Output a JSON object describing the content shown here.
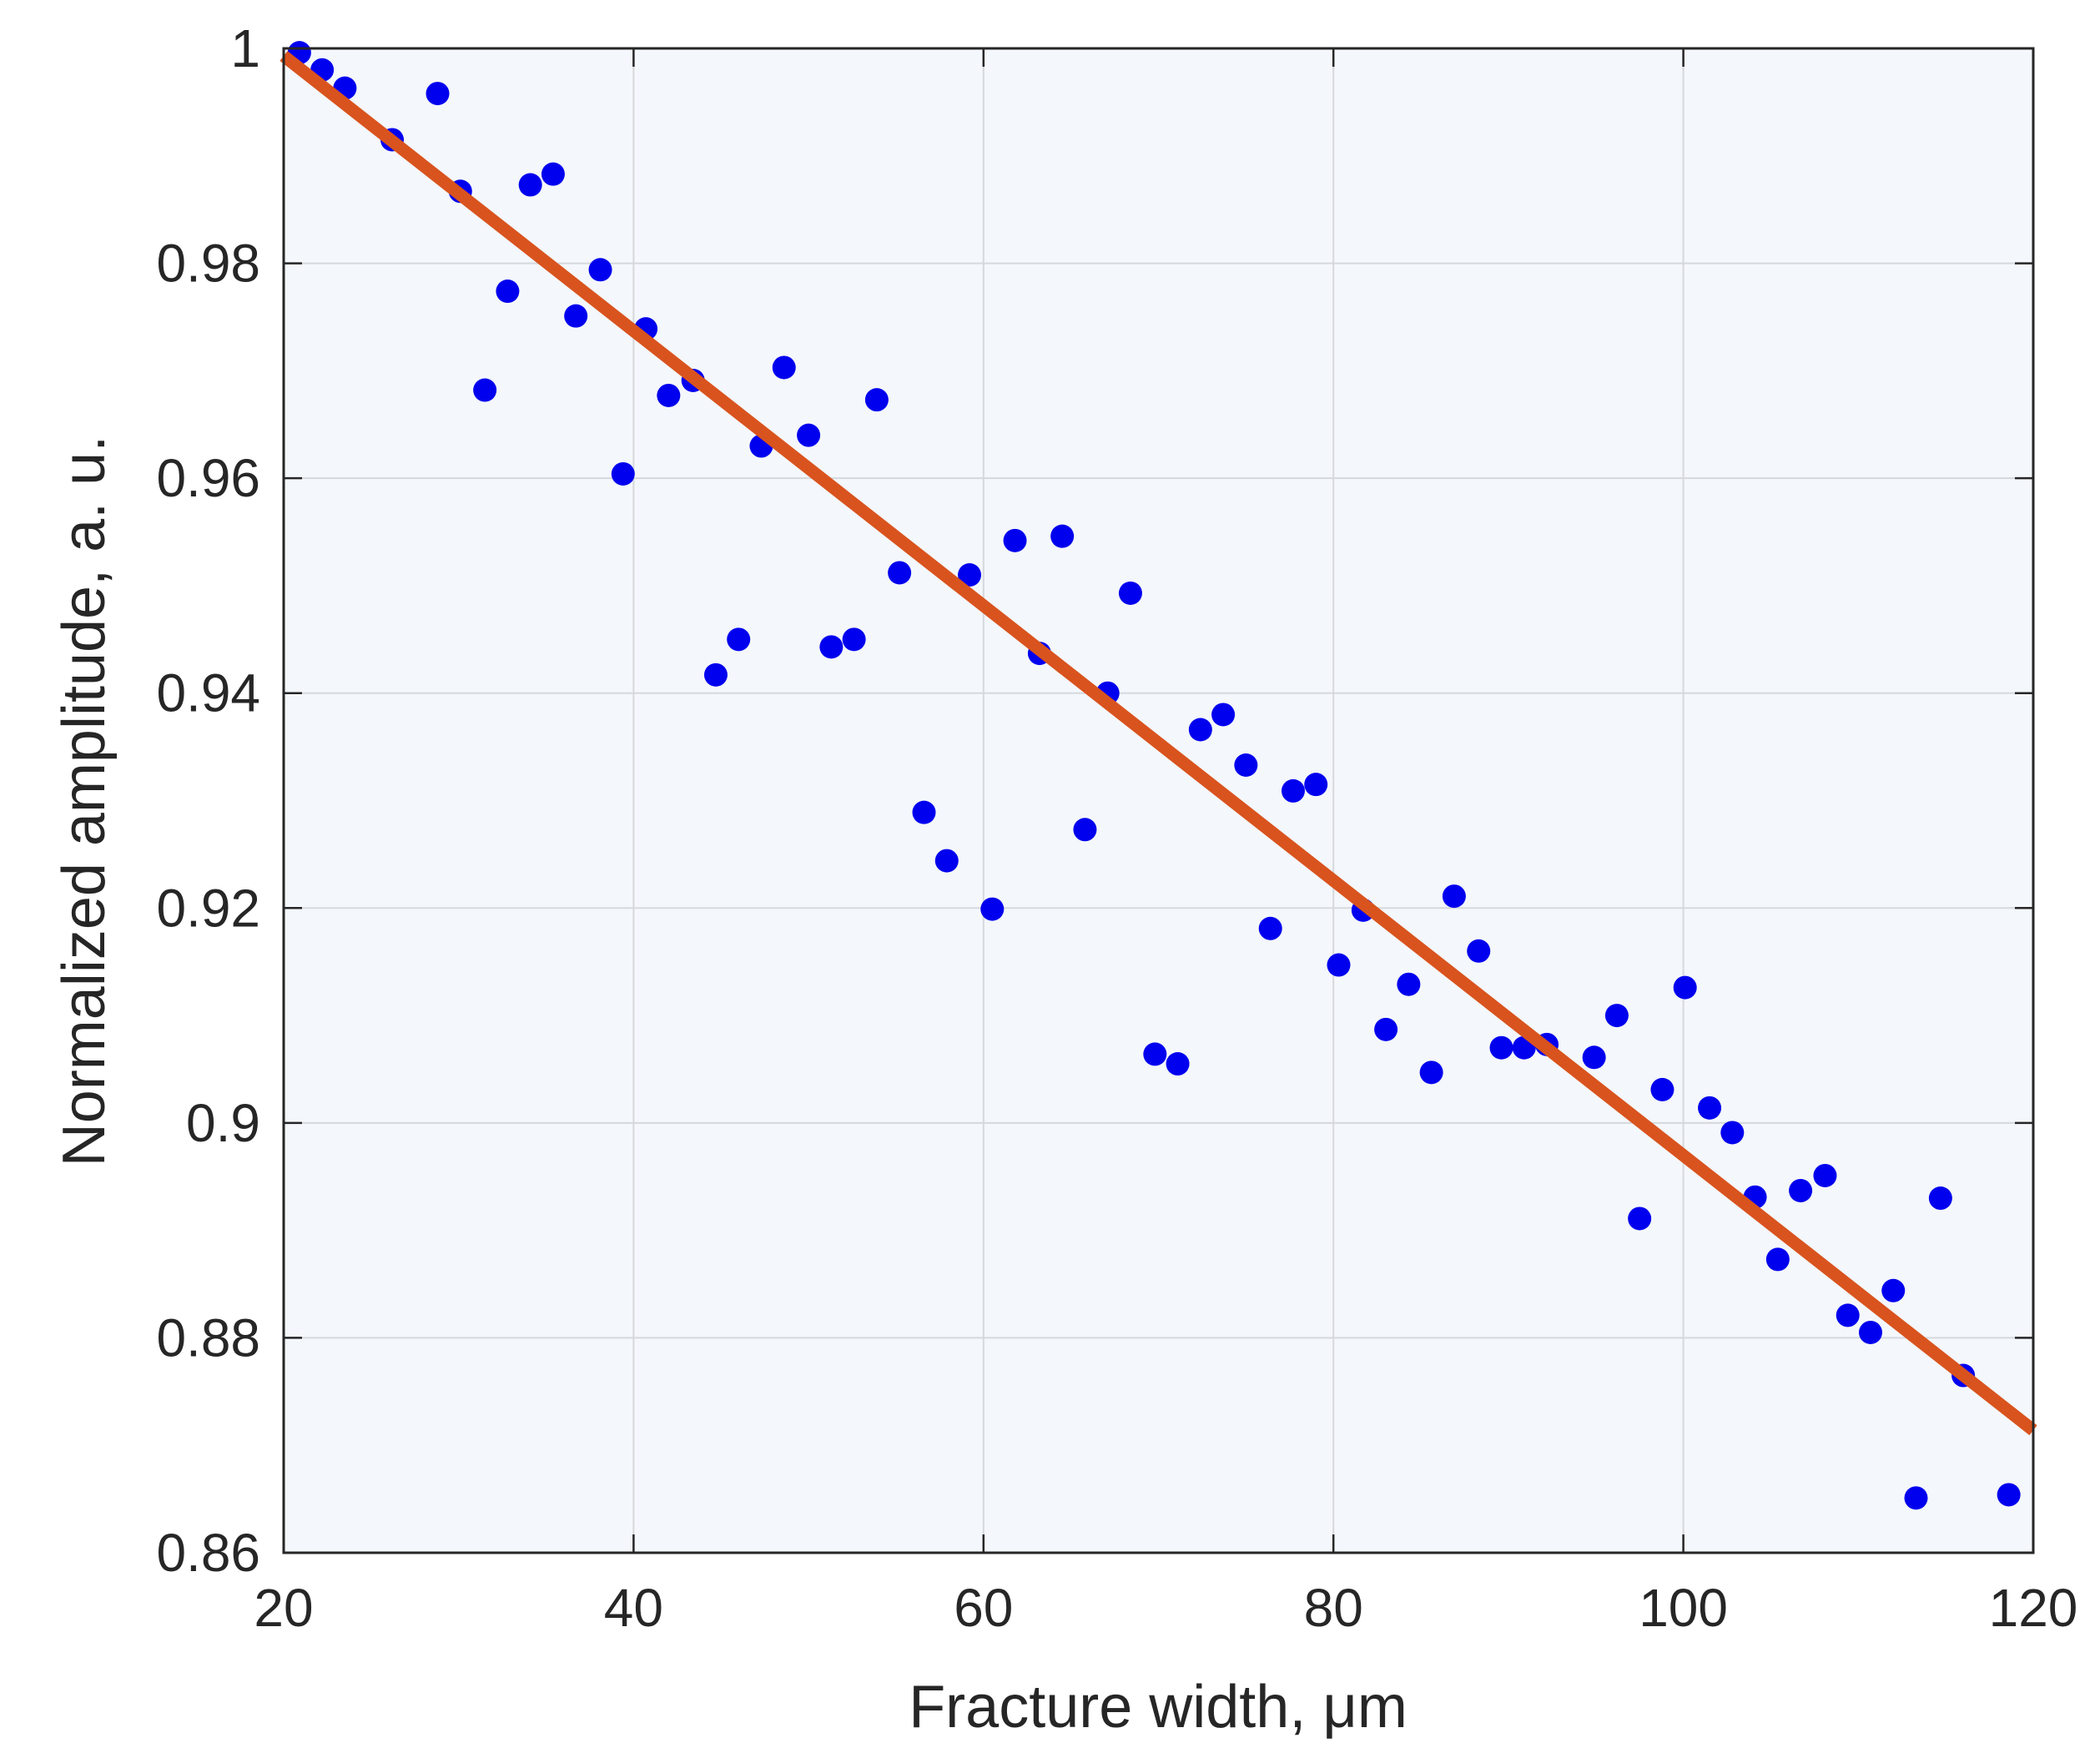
{
  "chart_data": {
    "type": "scatter",
    "xlabel": "Fracture width, μm",
    "ylabel": "Normalized amplitude, a. u.",
    "xlim": [
      20,
      120
    ],
    "ylim": [
      0.86,
      1.0
    ],
    "x_ticks": [
      20,
      40,
      60,
      80,
      100,
      120
    ],
    "x_tick_labels": [
      "20",
      "40",
      "60",
      "80",
      "100",
      "120"
    ],
    "y_ticks": [
      0.86,
      0.88,
      0.9,
      0.92,
      0.94,
      0.96,
      0.98,
      1.0
    ],
    "y_tick_labels": [
      "0.86",
      "0.88",
      "0.9",
      "0.92",
      "0.94",
      "0.96",
      "0.98",
      "1"
    ],
    "grid": true,
    "colors": {
      "points": "#0000ee",
      "fit_line": "#d9531e",
      "plot_background": "#f4f7fb",
      "axes": "#262626"
    },
    "series": [
      {
        "type": "scatter",
        "x": [
          20.9,
          22.2,
          23.5,
          26.2,
          28.8,
          30.1,
          31.5,
          32.8,
          34.1,
          35.4,
          36.7,
          38.1,
          39.4,
          40.7,
          42.0,
          43.4,
          44.7,
          46.0,
          47.3,
          48.6,
          50.0,
          51.3,
          52.6,
          53.9,
          55.2,
          56.6,
          57.9,
          59.2,
          60.5,
          61.8,
          63.2,
          64.5,
          65.8,
          67.1,
          68.4,
          69.8,
          71.1,
          72.4,
          73.7,
          75.0,
          76.4,
          77.7,
          79.0,
          80.3,
          81.7,
          83.0,
          84.3,
          85.6,
          86.9,
          88.3,
          89.6,
          90.9,
          92.2,
          94.9,
          96.2,
          97.5,
          98.8,
          100.1,
          101.5,
          102.8,
          104.1,
          105.4,
          106.7,
          108.1,
          109.4,
          110.7,
          112.0,
          113.3,
          114.7,
          116.0,
          118.6
        ],
        "y": [
          0.9996,
          0.998,
          0.9963,
          0.9915,
          0.9958,
          0.9867,
          0.9682,
          0.9774,
          0.9873,
          0.9883,
          0.9751,
          0.9794,
          0.9604,
          0.9739,
          0.9677,
          0.9691,
          0.9417,
          0.945,
          0.963,
          0.9703,
          0.964,
          0.9443,
          0.945,
          0.9673,
          0.9512,
          0.9289,
          0.9244,
          0.951,
          0.9199,
          0.9542,
          0.9437,
          0.9546,
          0.9273,
          0.94,
          0.9493,
          0.9064,
          0.9055,
          0.9366,
          0.938,
          0.9333,
          0.9181,
          0.9309,
          0.9315,
          0.9147,
          0.9198,
          0.9087,
          0.9129,
          0.9047,
          0.9211,
          0.916,
          0.907,
          0.907,
          0.9073,
          0.9061,
          0.91,
          0.8911,
          0.9031,
          0.9126,
          0.9014,
          0.8991,
          0.8931,
          0.8873,
          0.8937,
          0.8951,
          0.8821,
          0.8805,
          0.8844,
          0.8651,
          0.893,
          0.8765,
          0.8654
        ]
      },
      {
        "type": "line",
        "x": [
          20,
          120
        ],
        "y": [
          0.9993,
          0.8714
        ]
      }
    ]
  }
}
